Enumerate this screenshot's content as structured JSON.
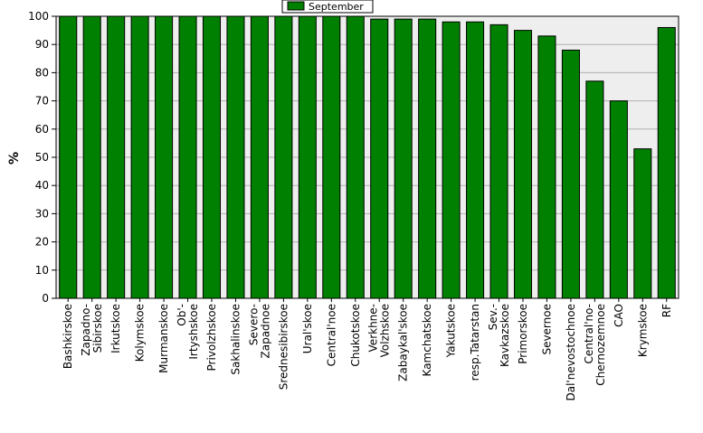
{
  "chart_data": {
    "type": "bar",
    "ylabel": "%",
    "xlabel": "",
    "title": "",
    "ylim": [
      0,
      100
    ],
    "y_ticks": [
      "0",
      "10",
      "20",
      "30",
      "40",
      "50",
      "60",
      "70",
      "80",
      "90",
      "100"
    ],
    "grid": true,
    "legend_position": "top-center",
    "colors": {
      "bar": "#008000",
      "bar_edge": "#000000",
      "plot_bg": "#eeeeee"
    },
    "categories": [
      "Bashkirskoe",
      "Zapadno-Sibirskoe",
      "Irkutskoe",
      "Kolymskoe",
      "Murmanskoe",
      "Ob'-Irtyshskoe",
      "Privolzhskoe",
      "Sakhalinskoe",
      "Severo-Zapadnoe",
      "Srednesibirskoe",
      "Ural'skoe",
      "Central'noe",
      "Chukotskoe",
      "Verkhne-Volzhskoe",
      "Zabaykal'skoe",
      "Kamchatskoe",
      "Yakutskoe",
      "resp.Tatarstan",
      "Sev.-Kavkazskoe",
      "Primorskoe",
      "Severnoe",
      "Dal'nevostochnoe",
      "Central'no-Chernozemnoe",
      "CAO",
      "Krymskoe",
      "RF"
    ],
    "category_lines": [
      [
        "Bashkirskoe"
      ],
      [
        "Zapadno-",
        "Sibirskoe"
      ],
      [
        "Irkutskoe"
      ],
      [
        "Kolymskoe"
      ],
      [
        "Murmanskoe"
      ],
      [
        "Ob'-",
        "Irtyshskoe"
      ],
      [
        "Privolzhskoe"
      ],
      [
        "Sakhalinskoe"
      ],
      [
        "Severo-",
        "Zapadnoe"
      ],
      [
        "Srednesibirskoe"
      ],
      [
        "Ural'skoe"
      ],
      [
        "Central'noe"
      ],
      [
        "Chukotskoe"
      ],
      [
        "Verkhne-",
        "Volzhskoe"
      ],
      [
        "Zabaykal'skoe"
      ],
      [
        "Kamchatskoe"
      ],
      [
        "Yakutskoe"
      ],
      [
        "resp.Tatarstan"
      ],
      [
        "Sev.-",
        "Kavkazskoe"
      ],
      [
        "Primorskoe"
      ],
      [
        "Severnoe"
      ],
      [
        "Dal'nevostochnoe"
      ],
      [
        "Central'no-",
        "Chernozemnoe"
      ],
      [
        "CAO"
      ],
      [
        "Krymskoe"
      ],
      [
        "RF"
      ]
    ],
    "series": [
      {
        "name": "September",
        "values": [
          100,
          100,
          100,
          100,
          100,
          100,
          100,
          100,
          100,
          100,
          100,
          100,
          100,
          99,
          99,
          99,
          98,
          98,
          97,
          95,
          93,
          88,
          77,
          70,
          53,
          96
        ]
      }
    ]
  }
}
